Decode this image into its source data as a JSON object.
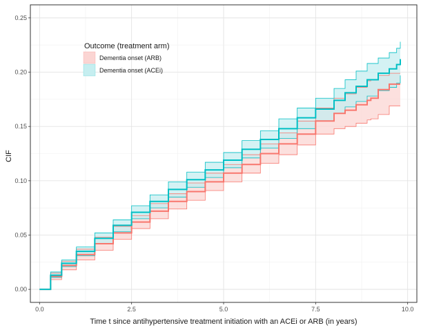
{
  "chart_data": {
    "type": "line",
    "step": true,
    "xlabel": "Time t since antihypertensive treatment initiation with an ACEi or ARB (in years)",
    "ylabel": "CIF",
    "xlim": [
      0,
      10
    ],
    "ylim": [
      0,
      0.25
    ],
    "xticks": [
      0,
      2.5,
      5,
      7.5,
      10
    ],
    "xtick_labels": [
      "0.0",
      "2.5",
      "5.0",
      "7.5",
      "10.0"
    ],
    "yticks": [
      0,
      0.05,
      0.1,
      0.15,
      0.2,
      0.25
    ],
    "ytick_labels": [
      "0.00",
      "0.05",
      "0.10",
      "0.15",
      "0.20",
      "0.25"
    ],
    "grid": true,
    "legend": {
      "title": "Outcome (treatment arm)",
      "position": "top-left"
    },
    "series": [
      {
        "name": "Dementia onset (ARB)",
        "color": "#F8766D",
        "fill": "#FBD5D3",
        "x": [
          0,
          0.3,
          0.6,
          1.0,
          1.5,
          2.0,
          2.5,
          3.0,
          3.5,
          4.0,
          4.5,
          5.0,
          5.5,
          6.0,
          6.5,
          7.0,
          7.5,
          8.0,
          8.3,
          8.6,
          8.9,
          9.0,
          9.2,
          9.5,
          9.8
        ],
        "y": [
          0,
          0.012,
          0.022,
          0.032,
          0.042,
          0.052,
          0.062,
          0.072,
          0.081,
          0.09,
          0.099,
          0.107,
          0.115,
          0.125,
          0.134,
          0.143,
          0.155,
          0.162,
          0.165,
          0.17,
          0.174,
          0.176,
          0.184,
          0.189,
          0.189
        ],
        "lower": [
          0,
          0.009,
          0.018,
          0.027,
          0.036,
          0.046,
          0.056,
          0.065,
          0.074,
          0.082,
          0.091,
          0.099,
          0.107,
          0.116,
          0.124,
          0.133,
          0.143,
          0.148,
          0.15,
          0.153,
          0.156,
          0.157,
          0.161,
          0.169,
          0.169
        ],
        "upper": [
          0,
          0.015,
          0.026,
          0.037,
          0.048,
          0.058,
          0.068,
          0.079,
          0.088,
          0.098,
          0.107,
          0.115,
          0.124,
          0.134,
          0.144,
          0.155,
          0.167,
          0.176,
          0.18,
          0.186,
          0.192,
          0.193,
          0.197,
          0.199,
          0.199
        ]
      },
      {
        "name": "Dementia onset (ACEi)",
        "color": "#00BFC4",
        "fill": "#C6EEF0",
        "x": [
          0,
          0.3,
          0.6,
          1.0,
          1.5,
          2.0,
          2.5,
          3.0,
          3.5,
          4.0,
          4.5,
          5.0,
          5.5,
          6.0,
          6.5,
          7.0,
          7.5,
          8.0,
          8.3,
          8.6,
          8.9,
          9.2,
          9.5,
          9.7,
          9.8
        ],
        "y": [
          0,
          0.013,
          0.024,
          0.035,
          0.047,
          0.059,
          0.071,
          0.081,
          0.092,
          0.101,
          0.11,
          0.119,
          0.129,
          0.138,
          0.148,
          0.158,
          0.166,
          0.174,
          0.181,
          0.187,
          0.193,
          0.199,
          0.203,
          0.207,
          0.212
        ],
        "lower": [
          0,
          0.011,
          0.021,
          0.031,
          0.042,
          0.053,
          0.065,
          0.075,
          0.085,
          0.094,
          0.103,
          0.112,
          0.121,
          0.13,
          0.139,
          0.148,
          0.155,
          0.162,
          0.168,
          0.173,
          0.178,
          0.183,
          0.186,
          0.19,
          0.197
        ],
        "upper": [
          0,
          0.016,
          0.027,
          0.039,
          0.052,
          0.064,
          0.077,
          0.087,
          0.099,
          0.108,
          0.117,
          0.126,
          0.137,
          0.146,
          0.157,
          0.167,
          0.176,
          0.185,
          0.193,
          0.201,
          0.208,
          0.213,
          0.218,
          0.222,
          0.228
        ]
      }
    ]
  }
}
